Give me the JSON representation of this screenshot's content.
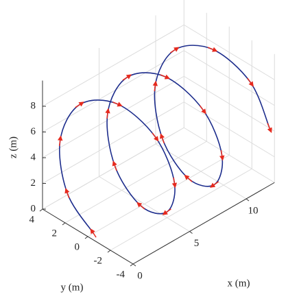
{
  "chart_data": {
    "type": "line3d",
    "xlabel": "x (m)",
    "ylabel": "y (m)",
    "zlabel": "z (m)",
    "xlim": [
      0,
      12.5
    ],
    "ylim": [
      -4,
      4
    ],
    "zlim": [
      0,
      10
    ],
    "xticks": [
      0,
      5,
      10
    ],
    "yticks": [
      -4,
      -2,
      0,
      2,
      4
    ],
    "zticks": [
      0,
      2,
      4,
      6,
      8
    ],
    "grid": true,
    "arrow_color": "#e62a1e",
    "series": [
      {
        "color": "#1c2c8c",
        "x": [
          0.5,
          1.03,
          1.55,
          2.08,
          2.6,
          3.13,
          3.65,
          4.18,
          4.7,
          5.23,
          5.75,
          6.28,
          6.8,
          7.33,
          7.85,
          8.38,
          8.9,
          9.43,
          9.95,
          10.48,
          11,
          11.53,
          12.05
        ],
        "y": [
          0,
          2.83,
          4,
          2.83,
          0,
          -2.83,
          -4,
          -2.83,
          0,
          2.83,
          4,
          2.83,
          0,
          -2.83,
          -4,
          -2.83,
          0,
          2.83,
          4,
          2.83,
          0,
          -2.83,
          -4
        ],
        "z": [
          0,
          1.32,
          4.5,
          7.68,
          9,
          7.68,
          4.5,
          1.32,
          0,
          1.32,
          4.5,
          7.68,
          9,
          7.68,
          4.5,
          1.32,
          0,
          1.32,
          4.5,
          7.68,
          9,
          7.68,
          4.5
        ]
      }
    ]
  }
}
